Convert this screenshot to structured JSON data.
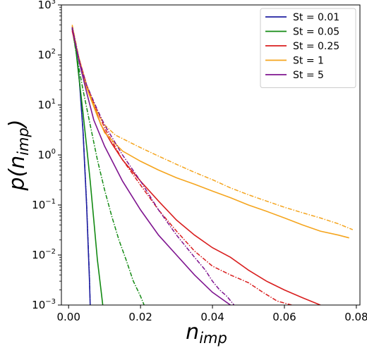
{
  "chart_data": {
    "type": "line",
    "xlabel": {
      "main": "n",
      "sub": "imp"
    },
    "ylabel": {
      "prefix": "p(",
      "main": "n",
      "sub": "imp",
      "suffix": ")"
    },
    "xlim": [
      -0.002,
      0.081
    ],
    "ylim": [
      0.001,
      1000
    ],
    "yscale": "log",
    "x_ticks": [
      {
        "value": 0.0,
        "label": "0.00"
      },
      {
        "value": 0.02,
        "label": "0.02"
      },
      {
        "value": 0.04,
        "label": "0.04"
      },
      {
        "value": 0.06,
        "label": "0.06"
      },
      {
        "value": 0.08,
        "label": "0.08"
      }
    ],
    "y_ticks": [
      {
        "value": 1000,
        "base": "10",
        "exp": "3"
      },
      {
        "value": 100,
        "base": "10",
        "exp": "2"
      },
      {
        "value": 10,
        "base": "10",
        "exp": "1"
      },
      {
        "value": 1,
        "base": "10",
        "exp": "0"
      },
      {
        "value": 0.1,
        "base": "10",
        "exp": "−1"
      },
      {
        "value": 0.01,
        "base": "10",
        "exp": "−2"
      },
      {
        "value": 0.001,
        "base": "10",
        "exp": "−3"
      }
    ],
    "legend_position": "top-right",
    "series": [
      {
        "name": "St = 0.01",
        "color": "#1f1fa0",
        "solid": [
          [
            0.001,
            350
          ],
          [
            0.002,
            150
          ],
          [
            0.003,
            30
          ],
          [
            0.004,
            3
          ],
          [
            0.005,
            0.1
          ],
          [
            0.0058,
            0.003
          ],
          [
            0.006,
            0.001
          ]
        ],
        "dashed": [
          [
            0.001,
            360
          ],
          [
            0.002,
            160
          ],
          [
            0.003,
            32
          ],
          [
            0.004,
            3.2
          ],
          [
            0.005,
            0.11
          ],
          [
            0.0058,
            0.0035
          ],
          [
            0.006,
            0.001
          ]
        ]
      },
      {
        "name": "St = 0.05",
        "color": "#138a13",
        "solid": [
          [
            0.001,
            330
          ],
          [
            0.002,
            130
          ],
          [
            0.003,
            30
          ],
          [
            0.004,
            7
          ],
          [
            0.005,
            1.5
          ],
          [
            0.006,
            0.3
          ],
          [
            0.007,
            0.05
          ],
          [
            0.008,
            0.008
          ],
          [
            0.009,
            0.002
          ],
          [
            0.0095,
            0.001
          ]
        ],
        "dashed": [
          [
            0.001,
            340
          ],
          [
            0.002,
            120
          ],
          [
            0.004,
            20
          ],
          [
            0.006,
            4
          ],
          [
            0.008,
            0.8
          ],
          [
            0.01,
            0.2
          ],
          [
            0.012,
            0.06
          ],
          [
            0.014,
            0.02
          ],
          [
            0.016,
            0.008
          ],
          [
            0.018,
            0.003
          ],
          [
            0.02,
            0.0015
          ],
          [
            0.021,
            0.001
          ]
        ]
      },
      {
        "name": "St = 0.25",
        "color": "#d91f1f",
        "solid": [
          [
            0.001,
            300
          ],
          [
            0.003,
            80
          ],
          [
            0.005,
            25
          ],
          [
            0.007,
            10
          ],
          [
            0.009,
            4
          ],
          [
            0.012,
            1.7
          ],
          [
            0.015,
            0.8
          ],
          [
            0.02,
            0.3
          ],
          [
            0.025,
            0.12
          ],
          [
            0.03,
            0.05
          ],
          [
            0.035,
            0.025
          ],
          [
            0.04,
            0.014
          ],
          [
            0.045,
            0.009
          ],
          [
            0.05,
            0.005
          ],
          [
            0.055,
            0.003
          ],
          [
            0.06,
            0.002
          ],
          [
            0.065,
            0.0014
          ],
          [
            0.07,
            0.001
          ]
        ],
        "dashed": [
          [
            0.001,
            320
          ],
          [
            0.003,
            75
          ],
          [
            0.005,
            25
          ],
          [
            0.007,
            11
          ],
          [
            0.01,
            3.5
          ],
          [
            0.015,
            0.8
          ],
          [
            0.02,
            0.25
          ],
          [
            0.025,
            0.08
          ],
          [
            0.03,
            0.03
          ],
          [
            0.035,
            0.012
          ],
          [
            0.04,
            0.006
          ],
          [
            0.045,
            0.004
          ],
          [
            0.05,
            0.0028
          ],
          [
            0.054,
            0.0018
          ],
          [
            0.058,
            0.0012
          ],
          [
            0.062,
            0.001
          ]
        ]
      },
      {
        "name": "St = 1",
        "color": "#f5a51e",
        "solid": [
          [
            0.001,
            380
          ],
          [
            0.003,
            70
          ],
          [
            0.005,
            22
          ],
          [
            0.008,
            6
          ],
          [
            0.01,
            2.8
          ],
          [
            0.015,
            1.2
          ],
          [
            0.02,
            0.75
          ],
          [
            0.025,
            0.5
          ],
          [
            0.03,
            0.35
          ],
          [
            0.035,
            0.26
          ],
          [
            0.04,
            0.19
          ],
          [
            0.045,
            0.14
          ],
          [
            0.05,
            0.1
          ],
          [
            0.055,
            0.075
          ],
          [
            0.06,
            0.055
          ],
          [
            0.065,
            0.04
          ],
          [
            0.07,
            0.03
          ],
          [
            0.075,
            0.025
          ],
          [
            0.078,
            0.022
          ]
        ],
        "dashed": [
          [
            0.001,
            400
          ],
          [
            0.003,
            80
          ],
          [
            0.005,
            25
          ],
          [
            0.008,
            7
          ],
          [
            0.01,
            4
          ],
          [
            0.013,
            2.5
          ],
          [
            0.02,
            1.4
          ],
          [
            0.025,
            0.95
          ],
          [
            0.03,
            0.65
          ],
          [
            0.035,
            0.45
          ],
          [
            0.04,
            0.32
          ],
          [
            0.045,
            0.22
          ],
          [
            0.05,
            0.16
          ],
          [
            0.055,
            0.12
          ],
          [
            0.06,
            0.09
          ],
          [
            0.065,
            0.07
          ],
          [
            0.07,
            0.055
          ],
          [
            0.075,
            0.042
          ],
          [
            0.079,
            0.032
          ]
        ]
      },
      {
        "name": "St = 5",
        "color": "#7f1590",
        "solid": [
          [
            0.001,
            350
          ],
          [
            0.003,
            70
          ],
          [
            0.005,
            18
          ],
          [
            0.007,
            5
          ],
          [
            0.01,
            1.5
          ],
          [
            0.015,
            0.3
          ],
          [
            0.02,
            0.08
          ],
          [
            0.025,
            0.025
          ],
          [
            0.03,
            0.01
          ],
          [
            0.035,
            0.004
          ],
          [
            0.04,
            0.0018
          ],
          [
            0.045,
            0.001
          ]
        ],
        "dashed": [
          [
            0.001,
            360
          ],
          [
            0.003,
            75
          ],
          [
            0.005,
            25
          ],
          [
            0.008,
            8
          ],
          [
            0.01,
            4
          ],
          [
            0.015,
            1
          ],
          [
            0.02,
            0.3
          ],
          [
            0.025,
            0.08
          ],
          [
            0.03,
            0.025
          ],
          [
            0.035,
            0.009
          ],
          [
            0.038,
            0.005
          ],
          [
            0.04,
            0.003
          ],
          [
            0.042,
            0.002
          ],
          [
            0.044,
            0.0015
          ],
          [
            0.046,
            0.001
          ]
        ]
      }
    ]
  }
}
